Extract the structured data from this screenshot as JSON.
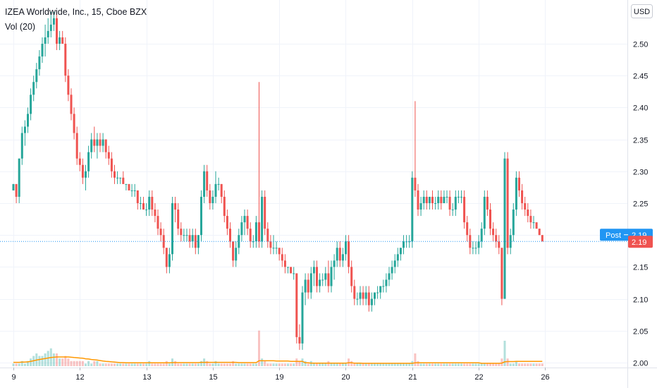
{
  "header": {
    "title": "IZEA Worldwide, Inc., 15, Cboe BZX",
    "indicator": "Vol (20)",
    "currency": "USD"
  },
  "labels": {
    "post_label": "Post",
    "post_value": "2.19",
    "last_value": "2.19"
  },
  "colors": {
    "up": "#26a69a",
    "down": "#ef5350",
    "volume_ma": "#ff9800",
    "post_badge": "#2196f3",
    "last_badge": "#ef5350",
    "price_line": "#2196f3"
  },
  "chart_data": {
    "type": "candlestick",
    "title": "IZEA Worldwide, Inc., 15, Cboe BZX",
    "indicator": "Vol (20)",
    "currency": "USD",
    "ylim": [
      1.98,
      2.56
    ],
    "y_ticks": [
      2.0,
      2.05,
      2.1,
      2.15,
      2.2,
      2.25,
      2.3,
      2.35,
      2.4,
      2.45,
      2.5
    ],
    "x_tick_labels": [
      "9",
      "12",
      "13",
      "15",
      "19",
      "20",
      "21",
      "22",
      "26"
    ],
    "day_starts": [
      0,
      23,
      46,
      69,
      92,
      115,
      138,
      161,
      184
    ],
    "last_price": 2.19,
    "post_price": 2.19,
    "grid": true,
    "ohlc": [
      [
        2.27,
        2.28,
        2.27,
        2.28
      ],
      [
        2.28,
        2.28,
        2.25,
        2.26
      ],
      [
        2.26,
        2.32,
        2.25,
        2.32
      ],
      [
        2.32,
        2.37,
        2.31,
        2.36
      ],
      [
        2.36,
        2.38,
        2.34,
        2.37
      ],
      [
        2.37,
        2.4,
        2.36,
        2.39
      ],
      [
        2.39,
        2.43,
        2.38,
        2.42
      ],
      [
        2.42,
        2.45,
        2.41,
        2.44
      ],
      [
        2.44,
        2.47,
        2.43,
        2.46
      ],
      [
        2.46,
        2.49,
        2.45,
        2.48
      ],
      [
        2.48,
        2.51,
        2.47,
        2.5
      ],
      [
        2.5,
        2.53,
        2.48,
        2.51
      ],
      [
        2.51,
        2.54,
        2.5,
        2.52
      ],
      [
        2.52,
        2.55,
        2.51,
        2.53
      ],
      [
        2.53,
        2.55,
        2.52,
        2.54
      ],
      [
        2.54,
        2.55,
        2.49,
        2.5
      ],
      [
        2.5,
        2.52,
        2.49,
        2.51
      ],
      [
        2.51,
        2.52,
        2.5,
        2.5
      ],
      [
        2.5,
        2.51,
        2.44,
        2.45
      ],
      [
        2.45,
        2.46,
        2.41,
        2.42
      ],
      [
        2.42,
        2.43,
        2.38,
        2.39
      ],
      [
        2.39,
        2.4,
        2.35,
        2.36
      ],
      [
        2.36,
        2.37,
        2.31,
        2.32
      ],
      [
        2.32,
        2.33,
        2.3,
        2.31
      ],
      [
        2.31,
        2.32,
        2.28,
        2.29
      ],
      [
        2.29,
        2.31,
        2.27,
        2.3
      ],
      [
        2.3,
        2.34,
        2.29,
        2.33
      ],
      [
        2.33,
        2.36,
        2.32,
        2.35
      ],
      [
        2.35,
        2.37,
        2.33,
        2.34
      ],
      [
        2.34,
        2.36,
        2.32,
        2.35
      ],
      [
        2.35,
        2.36,
        2.33,
        2.34
      ],
      [
        2.34,
        2.36,
        2.33,
        2.35
      ],
      [
        2.35,
        2.35,
        2.32,
        2.33
      ],
      [
        2.33,
        2.34,
        2.31,
        2.32
      ],
      [
        2.32,
        2.33,
        2.29,
        2.3
      ],
      [
        2.3,
        2.31,
        2.28,
        2.29
      ],
      [
        2.29,
        2.3,
        2.28,
        2.29
      ],
      [
        2.29,
        2.29,
        2.28,
        2.29
      ],
      [
        2.29,
        2.3,
        2.28,
        2.28
      ],
      [
        2.28,
        2.28,
        2.27,
        2.28
      ],
      [
        2.28,
        2.28,
        2.27,
        2.27
      ],
      [
        2.27,
        2.28,
        2.26,
        2.27
      ],
      [
        2.27,
        2.28,
        2.26,
        2.27
      ],
      [
        2.27,
        2.27,
        2.24,
        2.25
      ],
      [
        2.25,
        2.26,
        2.24,
        2.25
      ],
      [
        2.25,
        2.26,
        2.24,
        2.24
      ],
      [
        2.24,
        2.25,
        2.23,
        2.24
      ],
      [
        2.24,
        2.27,
        2.23,
        2.26
      ],
      [
        2.26,
        2.27,
        2.23,
        2.24
      ],
      [
        2.24,
        2.25,
        2.22,
        2.23
      ],
      [
        2.23,
        2.24,
        2.2,
        2.21
      ],
      [
        2.21,
        2.22,
        2.19,
        2.2
      ],
      [
        2.2,
        2.21,
        2.17,
        2.18
      ],
      [
        2.18,
        2.18,
        2.14,
        2.15
      ],
      [
        2.15,
        2.18,
        2.14,
        2.17
      ],
      [
        2.17,
        2.26,
        2.16,
        2.25
      ],
      [
        2.25,
        2.26,
        2.22,
        2.24
      ],
      [
        2.24,
        2.25,
        2.2,
        2.21
      ],
      [
        2.21,
        2.22,
        2.19,
        2.2
      ],
      [
        2.2,
        2.21,
        2.19,
        2.2
      ],
      [
        2.2,
        2.21,
        2.19,
        2.2
      ],
      [
        2.2,
        2.21,
        2.18,
        2.19
      ],
      [
        2.19,
        2.21,
        2.18,
        2.2
      ],
      [
        2.2,
        2.21,
        2.17,
        2.18
      ],
      [
        2.18,
        2.2,
        2.17,
        2.2
      ],
      [
        2.2,
        2.27,
        2.19,
        2.26
      ],
      [
        2.26,
        2.31,
        2.25,
        2.3
      ],
      [
        2.3,
        2.31,
        2.26,
        2.27
      ],
      [
        2.27,
        2.28,
        2.24,
        2.25
      ],
      [
        2.25,
        2.27,
        2.24,
        2.26
      ],
      [
        2.26,
        2.3,
        2.25,
        2.28
      ],
      [
        2.28,
        2.29,
        2.27,
        2.28
      ],
      [
        2.28,
        2.28,
        2.25,
        2.26
      ],
      [
        2.26,
        2.27,
        2.22,
        2.23
      ],
      [
        2.23,
        2.24,
        2.2,
        2.21
      ],
      [
        2.21,
        2.22,
        2.18,
        2.19
      ],
      [
        2.19,
        2.19,
        2.15,
        2.16
      ],
      [
        2.16,
        2.19,
        2.15,
        2.18
      ],
      [
        2.18,
        2.21,
        2.17,
        2.2
      ],
      [
        2.2,
        2.23,
        2.19,
        2.22
      ],
      [
        2.22,
        2.24,
        2.2,
        2.23
      ],
      [
        2.23,
        2.24,
        2.2,
        2.21
      ],
      [
        2.21,
        2.22,
        2.18,
        2.19
      ],
      [
        2.19,
        2.2,
        2.18,
        2.19
      ],
      [
        2.19,
        2.23,
        2.18,
        2.22
      ],
      [
        2.22,
        2.44,
        2.18,
        2.19
      ],
      [
        2.19,
        2.27,
        2.18,
        2.26
      ],
      [
        2.26,
        2.27,
        2.2,
        2.21
      ],
      [
        2.21,
        2.22,
        2.18,
        2.19
      ],
      [
        2.19,
        2.2,
        2.17,
        2.18
      ],
      [
        2.18,
        2.2,
        2.17,
        2.18
      ],
      [
        2.18,
        2.19,
        2.17,
        2.18
      ],
      [
        2.18,
        2.18,
        2.16,
        2.17
      ],
      [
        2.17,
        2.18,
        2.15,
        2.16
      ],
      [
        2.16,
        2.17,
        2.14,
        2.15
      ],
      [
        2.15,
        2.15,
        2.14,
        2.15
      ],
      [
        2.15,
        2.15,
        2.14,
        2.14
      ],
      [
        2.14,
        2.15,
        2.13,
        2.14
      ],
      [
        2.14,
        2.14,
        2.03,
        2.04
      ],
      [
        2.04,
        2.06,
        2.02,
        2.03
      ],
      [
        2.03,
        2.12,
        2.02,
        2.11
      ],
      [
        2.11,
        2.14,
        2.09,
        2.13
      ],
      [
        2.13,
        2.14,
        2.1,
        2.11
      ],
      [
        2.11,
        2.15,
        2.1,
        2.14
      ],
      [
        2.14,
        2.16,
        2.12,
        2.15
      ],
      [
        2.15,
        2.16,
        2.11,
        2.12
      ],
      [
        2.12,
        2.14,
        2.11,
        2.13
      ],
      [
        2.13,
        2.14,
        2.12,
        2.13
      ],
      [
        2.13,
        2.15,
        2.12,
        2.14
      ],
      [
        2.14,
        2.16,
        2.11,
        2.12
      ],
      [
        2.12,
        2.16,
        2.11,
        2.15
      ],
      [
        2.15,
        2.17,
        2.13,
        2.16
      ],
      [
        2.16,
        2.19,
        2.15,
        2.18
      ],
      [
        2.18,
        2.19,
        2.15,
        2.16
      ],
      [
        2.16,
        2.18,
        2.15,
        2.17
      ],
      [
        2.17,
        2.2,
        2.16,
        2.19
      ],
      [
        2.19,
        2.2,
        2.14,
        2.15
      ],
      [
        2.15,
        2.16,
        2.11,
        2.12
      ],
      [
        2.12,
        2.13,
        2.09,
        2.1
      ],
      [
        2.1,
        2.11,
        2.09,
        2.1
      ],
      [
        2.1,
        2.12,
        2.09,
        2.11
      ],
      [
        2.11,
        2.12,
        2.09,
        2.1
      ],
      [
        2.1,
        2.12,
        2.09,
        2.11
      ],
      [
        2.11,
        2.12,
        2.08,
        2.09
      ],
      [
        2.09,
        2.11,
        2.08,
        2.1
      ],
      [
        2.1,
        2.11,
        2.09,
        2.11
      ],
      [
        2.11,
        2.12,
        2.1,
        2.11
      ],
      [
        2.11,
        2.12,
        2.1,
        2.12
      ],
      [
        2.12,
        2.13,
        2.11,
        2.12
      ],
      [
        2.12,
        2.14,
        2.11,
        2.13
      ],
      [
        2.13,
        2.15,
        2.12,
        2.14
      ],
      [
        2.14,
        2.16,
        2.13,
        2.15
      ],
      [
        2.15,
        2.17,
        2.14,
        2.16
      ],
      [
        2.16,
        2.18,
        2.15,
        2.17
      ],
      [
        2.17,
        2.18,
        2.16,
        2.18
      ],
      [
        2.18,
        2.2,
        2.17,
        2.19
      ],
      [
        2.19,
        2.2,
        2.18,
        2.19
      ],
      [
        2.19,
        2.2,
        2.18,
        2.19
      ],
      [
        2.19,
        2.3,
        2.18,
        2.29
      ],
      [
        2.29,
        2.41,
        2.26,
        2.27
      ],
      [
        2.27,
        2.28,
        2.23,
        2.24
      ],
      [
        2.24,
        2.26,
        2.23,
        2.25
      ],
      [
        2.25,
        2.27,
        2.24,
        2.26
      ],
      [
        2.26,
        2.27,
        2.24,
        2.25
      ],
      [
        2.25,
        2.26,
        2.24,
        2.26
      ],
      [
        2.26,
        2.27,
        2.24,
        2.25
      ],
      [
        2.25,
        2.26,
        2.24,
        2.25
      ],
      [
        2.25,
        2.27,
        2.24,
        2.26
      ],
      [
        2.26,
        2.27,
        2.24,
        2.25
      ],
      [
        2.25,
        2.27,
        2.25,
        2.26
      ],
      [
        2.26,
        2.27,
        2.25,
        2.26
      ],
      [
        2.26,
        2.27,
        2.23,
        2.24
      ],
      [
        2.24,
        2.25,
        2.23,
        2.24
      ],
      [
        2.24,
        2.27,
        2.23,
        2.26
      ],
      [
        2.26,
        2.27,
        2.25,
        2.26
      ],
      [
        2.26,
        2.27,
        2.25,
        2.26
      ],
      [
        2.26,
        2.27,
        2.21,
        2.22
      ],
      [
        2.22,
        2.23,
        2.19,
        2.2
      ],
      [
        2.2,
        2.21,
        2.17,
        2.18
      ],
      [
        2.18,
        2.19,
        2.17,
        2.18
      ],
      [
        2.18,
        2.19,
        2.17,
        2.18
      ],
      [
        2.18,
        2.2,
        2.17,
        2.19
      ],
      [
        2.19,
        2.22,
        2.18,
        2.21
      ],
      [
        2.21,
        2.27,
        2.2,
        2.26
      ],
      [
        2.26,
        2.27,
        2.23,
        2.24
      ],
      [
        2.24,
        2.25,
        2.2,
        2.21
      ],
      [
        2.21,
        2.22,
        2.19,
        2.2
      ],
      [
        2.2,
        2.21,
        2.18,
        2.19
      ],
      [
        2.19,
        2.2,
        2.17,
        2.18
      ],
      [
        2.18,
        2.18,
        2.09,
        2.1
      ],
      [
        2.1,
        2.33,
        2.1,
        2.32
      ],
      [
        2.32,
        2.33,
        2.17,
        2.18
      ],
      [
        2.18,
        2.21,
        2.17,
        2.2
      ],
      [
        2.2,
        2.25,
        2.19,
        2.24
      ],
      [
        2.24,
        2.3,
        2.23,
        2.29
      ],
      [
        2.29,
        2.3,
        2.26,
        2.27
      ],
      [
        2.27,
        2.28,
        2.24,
        2.25
      ],
      [
        2.25,
        2.26,
        2.23,
        2.24
      ],
      [
        2.24,
        2.25,
        2.22,
        2.23
      ],
      [
        2.23,
        2.24,
        2.21,
        2.22
      ],
      [
        2.22,
        2.23,
        2.21,
        2.22
      ],
      [
        2.22,
        2.22,
        2.21,
        2.21
      ],
      [
        2.21,
        2.21,
        2.2,
        2.2
      ],
      [
        2.2,
        2.2,
        2.19,
        2.19
      ]
    ],
    "volume": [
      1,
      1,
      1,
      2,
      1,
      2,
      3,
      4,
      5,
      4,
      4,
      5,
      6,
      7,
      5,
      5,
      3,
      3,
      4,
      3,
      2,
      2,
      2,
      2,
      2,
      1,
      2,
      1,
      2,
      2,
      1,
      1,
      1,
      1,
      1,
      1,
      1,
      1,
      1,
      1,
      1,
      1,
      1,
      1,
      1,
      1,
      1,
      2,
      1,
      1,
      1,
      1,
      1,
      2,
      1,
      3,
      2,
      1,
      1,
      1,
      1,
      1,
      1,
      1,
      1,
      2,
      3,
      2,
      1,
      1,
      2,
      1,
      1,
      1,
      1,
      1,
      2,
      1,
      1,
      1,
      1,
      1,
      1,
      1,
      1,
      14,
      3,
      2,
      1,
      1,
      1,
      1,
      1,
      1,
      1,
      1,
      1,
      1,
      3,
      2,
      3,
      2,
      1,
      2,
      1,
      1,
      1,
      1,
      1,
      2,
      1,
      1,
      1,
      1,
      1,
      1,
      3,
      2,
      1,
      1,
      1,
      1,
      1,
      1,
      1,
      1,
      1,
      1,
      1,
      1,
      1,
      1,
      1,
      1,
      1,
      1,
      1,
      1,
      2,
      5,
      2,
      1,
      1,
      1,
      1,
      1,
      1,
      1,
      1,
      1,
      1,
      1,
      1,
      1,
      1,
      1,
      1,
      1,
      1,
      1,
      1,
      1,
      1,
      1,
      1,
      1,
      1,
      1,
      1,
      3,
      10,
      3,
      1,
      1,
      2,
      1,
      1,
      1,
      1,
      1,
      1,
      1,
      1,
      1
    ],
    "volume_ma": [
      1.5,
      1.5,
      1.5,
      1.6,
      1.6,
      1.7,
      1.9,
      2.1,
      2.4,
      2.6,
      2.8,
      3.0,
      3.2,
      3.4,
      3.5,
      3.6,
      3.6,
      3.6,
      3.6,
      3.6,
      3.5,
      3.4,
      3.3,
      3.2,
      3.1,
      2.9,
      2.8,
      2.6,
      2.5,
      2.4,
      2.2,
      2.0,
      1.9,
      1.8,
      1.7,
      1.6,
      1.5,
      1.4,
      1.4,
      1.3,
      1.3,
      1.3,
      1.3,
      1.3,
      1.3,
      1.3,
      1.3,
      1.3,
      1.3,
      1.3,
      1.3,
      1.3,
      1.3,
      1.3,
      1.3,
      1.4,
      1.4,
      1.4,
      1.4,
      1.4,
      1.4,
      1.4,
      1.4,
      1.4,
      1.4,
      1.5,
      1.5,
      1.5,
      1.5,
      1.5,
      1.5,
      1.5,
      1.5,
      1.5,
      1.5,
      1.5,
      1.5,
      1.5,
      1.4,
      1.4,
      1.4,
      1.4,
      1.4,
      1.4,
      1.4,
      2.1,
      2.1,
      2.1,
      2.1,
      2.1,
      2.1,
      2.0,
      2.0,
      2.0,
      2.0,
      2.0,
      1.9,
      1.9,
      1.9,
      1.9,
      1.9,
      1.3,
      1.3,
      1.2,
      1.2,
      1.2,
      1.2,
      1.2,
      1.2,
      1.2,
      1.2,
      1.2,
      1.2,
      1.2,
      1.2,
      1.2,
      1.3,
      1.3,
      1.2,
      1.2,
      1.2,
      1.1,
      1.1,
      1.1,
      1.1,
      1.1,
      1.1,
      1.1,
      1.1,
      1.1,
      1.1,
      1.1,
      1.1,
      1.1,
      1.1,
      1.1,
      1.1,
      1.1,
      1.1,
      1.3,
      1.3,
      1.3,
      1.3,
      1.3,
      1.3,
      1.3,
      1.3,
      1.3,
      1.3,
      1.3,
      1.3,
      1.3,
      1.3,
      1.3,
      1.3,
      1.3,
      1.3,
      1.3,
      1.3,
      1.3,
      1.3,
      1.3,
      1.1,
      1.1,
      1.1,
      1.1,
      1.1,
      1.1,
      1.1,
      1.2,
      1.7,
      1.8,
      1.8,
      1.8,
      1.9,
      1.9,
      1.9,
      1.9,
      1.9,
      1.9,
      1.9,
      1.9,
      1.9,
      1.9
    ],
    "volume_axis_max": 35
  }
}
